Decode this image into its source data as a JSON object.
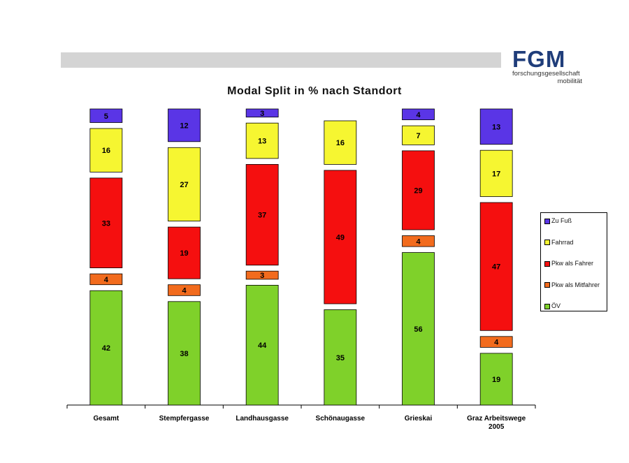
{
  "logo": {
    "mark": "FGM",
    "line1": "forschungsgesellschaft",
    "line2": "mobilität"
  },
  "chart_data": {
    "type": "bar",
    "stacked": true,
    "title": "Modal Split in % nach Standort",
    "xlabel": "",
    "ylabel": "",
    "ylim": [
      0,
      100
    ],
    "grid": false,
    "legend_position": "right",
    "categories": [
      "Gesamt",
      "Stempfergasse",
      "Landhausgasse",
      "Schönaugasse",
      "Grieskai",
      "Graz Arbeitswege 2005"
    ],
    "series": [
      {
        "name": "ÖV",
        "color": "#7fd12a",
        "values": [
          42,
          38,
          44,
          35,
          56,
          19
        ]
      },
      {
        "name": "Pkw als Mitfahrer",
        "color": "#f26b1d",
        "values": [
          4,
          4,
          3,
          null,
          4,
          4
        ]
      },
      {
        "name": "Pkw als Fahrer",
        "color": "#f50f0f",
        "values": [
          33,
          19,
          37,
          49,
          29,
          47
        ]
      },
      {
        "name": "Fahrrad",
        "color": "#f6f631",
        "values": [
          16,
          27,
          13,
          16,
          7,
          17
        ]
      },
      {
        "name": "Zu Fuß",
        "color": "#5a35e6",
        "values": [
          5,
          12,
          3,
          null,
          4,
          13
        ]
      }
    ]
  }
}
